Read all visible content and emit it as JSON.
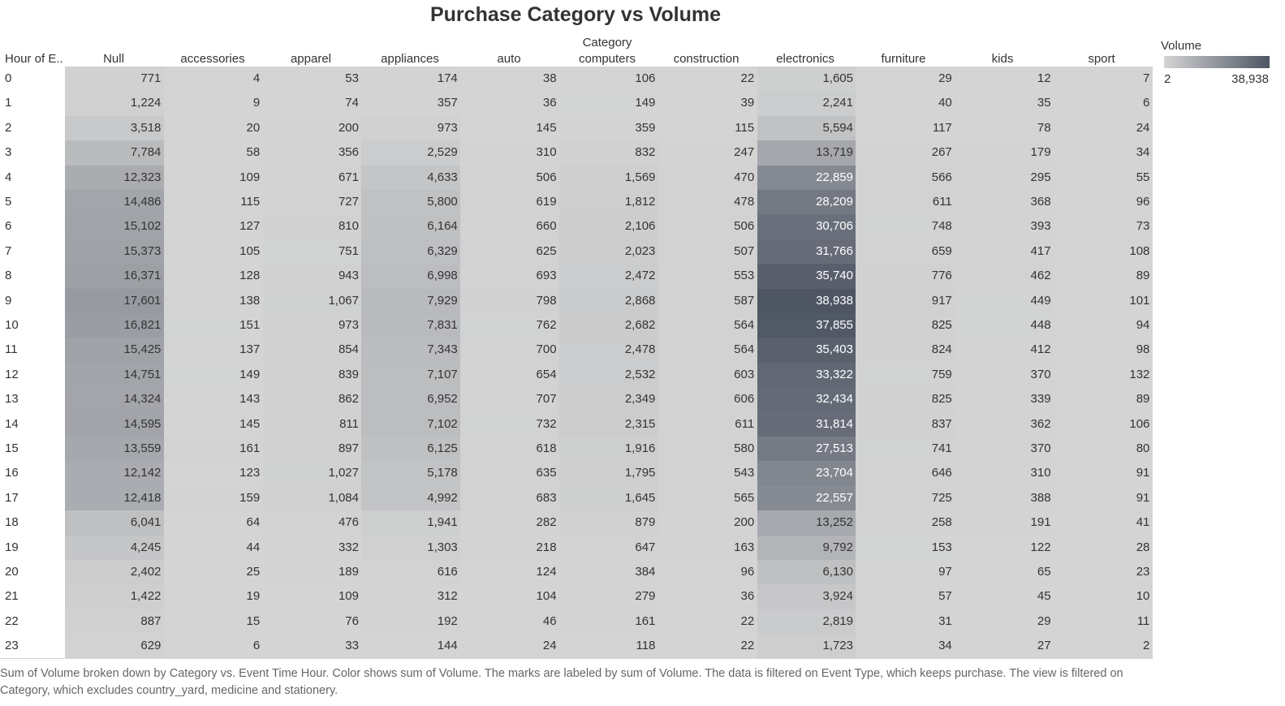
{
  "chart_data": {
    "type": "heatmap",
    "title": "Purchase Category vs Volume",
    "column_group_label": "Category",
    "row_header_label": "Hour of E..",
    "columns": [
      "Null",
      "accessories",
      "apparel",
      "appliances",
      "auto",
      "computers",
      "construction",
      "electronics",
      "furniture",
      "kids",
      "sport"
    ],
    "rows": [
      "0",
      "1",
      "2",
      "3",
      "4",
      "5",
      "6",
      "7",
      "8",
      "9",
      "10",
      "11",
      "12",
      "13",
      "14",
      "15",
      "16",
      "17",
      "18",
      "19",
      "20",
      "21",
      "22",
      "23"
    ],
    "values": [
      [
        771,
        4,
        53,
        174,
        38,
        106,
        22,
        1605,
        29,
        12,
        7
      ],
      [
        1224,
        9,
        74,
        357,
        36,
        149,
        39,
        2241,
        40,
        35,
        6
      ],
      [
        3518,
        20,
        200,
        973,
        145,
        359,
        115,
        5594,
        117,
        78,
        24
      ],
      [
        7784,
        58,
        356,
        2529,
        310,
        832,
        247,
        13719,
        267,
        179,
        34
      ],
      [
        12323,
        109,
        671,
        4633,
        506,
        1569,
        470,
        22859,
        566,
        295,
        55
      ],
      [
        14486,
        115,
        727,
        5800,
        619,
        1812,
        478,
        28209,
        611,
        368,
        96
      ],
      [
        15102,
        127,
        810,
        6164,
        660,
        2106,
        506,
        30706,
        748,
        393,
        73
      ],
      [
        15373,
        105,
        751,
        6329,
        625,
        2023,
        507,
        31766,
        659,
        417,
        108
      ],
      [
        16371,
        128,
        943,
        6998,
        693,
        2472,
        553,
        35740,
        776,
        462,
        89
      ],
      [
        17601,
        138,
        1067,
        7929,
        798,
        2868,
        587,
        38938,
        917,
        449,
        101
      ],
      [
        16821,
        151,
        973,
        7831,
        762,
        2682,
        564,
        37855,
        825,
        448,
        94
      ],
      [
        15425,
        137,
        854,
        7343,
        700,
        2478,
        564,
        35403,
        824,
        412,
        98
      ],
      [
        14751,
        149,
        839,
        7107,
        654,
        2532,
        603,
        33322,
        759,
        370,
        132
      ],
      [
        14324,
        143,
        862,
        6952,
        707,
        2349,
        606,
        32434,
        825,
        339,
        89
      ],
      [
        14595,
        145,
        811,
        7102,
        732,
        2315,
        611,
        31814,
        837,
        362,
        106
      ],
      [
        13559,
        161,
        897,
        6125,
        618,
        1916,
        580,
        27513,
        741,
        370,
        80
      ],
      [
        12142,
        123,
        1027,
        5178,
        635,
        1795,
        543,
        23704,
        646,
        310,
        91
      ],
      [
        12418,
        159,
        1084,
        4992,
        683,
        1645,
        565,
        22557,
        725,
        388,
        91
      ],
      [
        6041,
        64,
        476,
        1941,
        282,
        879,
        200,
        13252,
        258,
        191,
        41
      ],
      [
        4245,
        44,
        332,
        1303,
        218,
        647,
        163,
        9792,
        153,
        122,
        28
      ],
      [
        2402,
        25,
        189,
        616,
        124,
        384,
        96,
        6130,
        97,
        65,
        23
      ],
      [
        1422,
        19,
        109,
        312,
        104,
        279,
        36,
        3924,
        57,
        45,
        10
      ],
      [
        887,
        15,
        76,
        192,
        46,
        161,
        22,
        2819,
        31,
        29,
        11
      ],
      [
        629,
        6,
        33,
        144,
        24,
        118,
        22,
        1723,
        34,
        27,
        2
      ]
    ],
    "legend": {
      "title": "Volume",
      "min": 2,
      "max": 38938,
      "min_label": "2",
      "max_label": "38,938",
      "placement": "top-right"
    },
    "colors": {
      "low": "#d4d4d4",
      "high": "#4e5563",
      "text_dark": "#333333",
      "text_light": "#ffffff"
    }
  },
  "caption": "Sum of Volume broken down by Category vs. Event Time Hour.  Color shows sum of Volume.  The marks are labeled by sum of Volume. The data is filtered on Event Type, which keeps purchase. The view is filtered on Category, which excludes country_yard, medicine and stationery."
}
